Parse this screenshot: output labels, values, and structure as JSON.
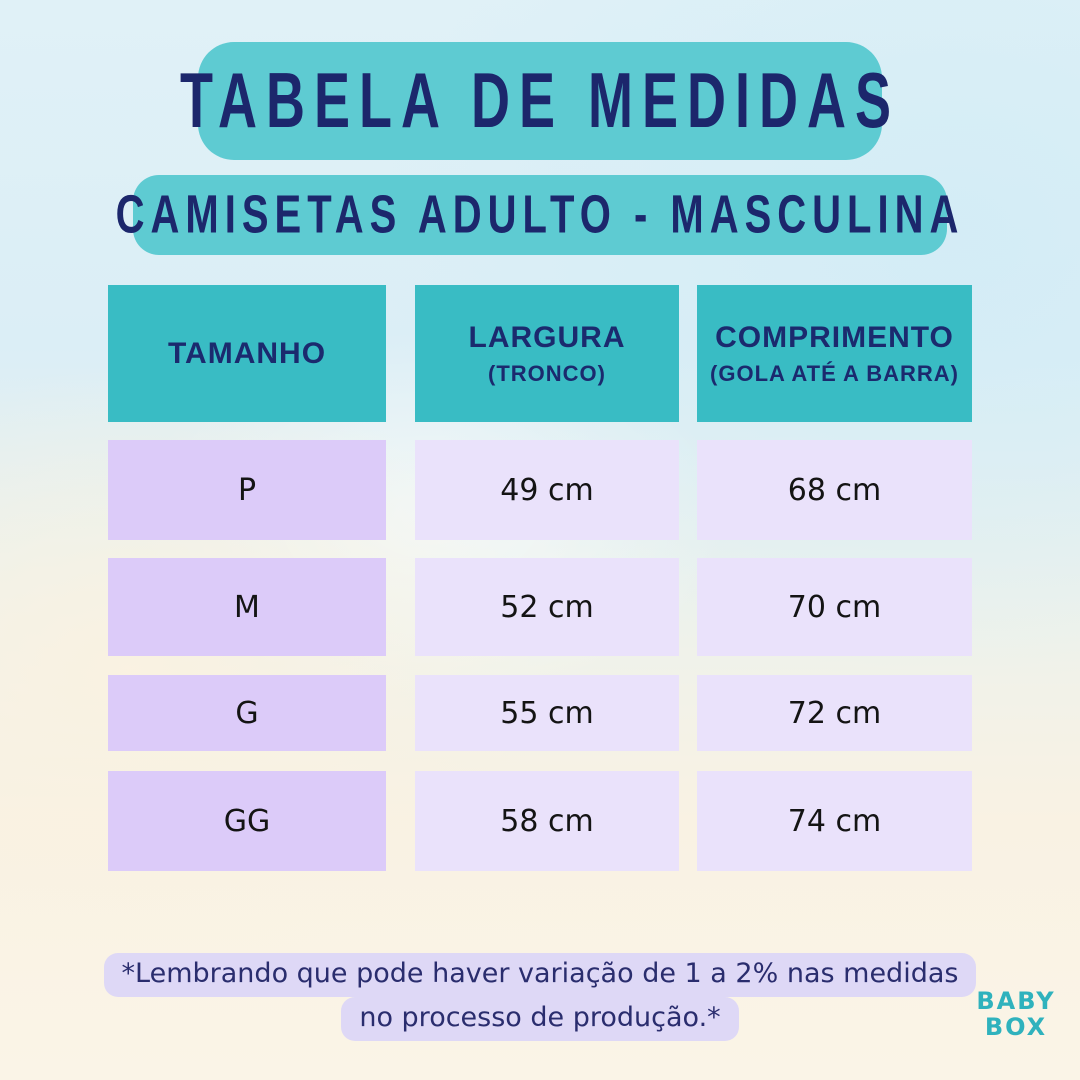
{
  "header": {
    "title": "Tabela de Medidas",
    "subtitle": "Camisetas Adulto - Masculina"
  },
  "table": {
    "headers": [
      {
        "label": "TAMANHO",
        "sub": ""
      },
      {
        "label": "LARGURA",
        "sub": "(TRONCO)"
      },
      {
        "label": "COMPRIMENTO",
        "sub": "(GOLA ATÉ A BARRA)"
      }
    ],
    "rows": [
      {
        "size": "P",
        "largura": "49 cm",
        "comprimento": "68 cm"
      },
      {
        "size": "M",
        "largura": "52 cm",
        "comprimento": "70 cm"
      },
      {
        "size": "G",
        "largura": "55 cm",
        "comprimento": "72 cm"
      },
      {
        "size": "GG",
        "largura": "58 cm",
        "comprimento": "74 cm"
      }
    ]
  },
  "footnote": {
    "line1": "*Lembrando que pode haver variação de 1 a 2% nas medidas",
    "line2": "no processo de produção.*"
  },
  "logo": {
    "line1": "BABY",
    "line2": "BOX"
  },
  "colors": {
    "banner_teal": "#5ecbd2",
    "header_teal": "#39bcc4",
    "navy": "#1b2a6e",
    "cell_lavender_dark": "#dccbf9",
    "cell_lavender_light": "#eae2fb",
    "footnote_highlight": "#ded8f6",
    "logo_teal": "#2fb2bd",
    "bg_top_blue": "#dbeef6",
    "bg_bottom_cream": "#faf4e7"
  }
}
